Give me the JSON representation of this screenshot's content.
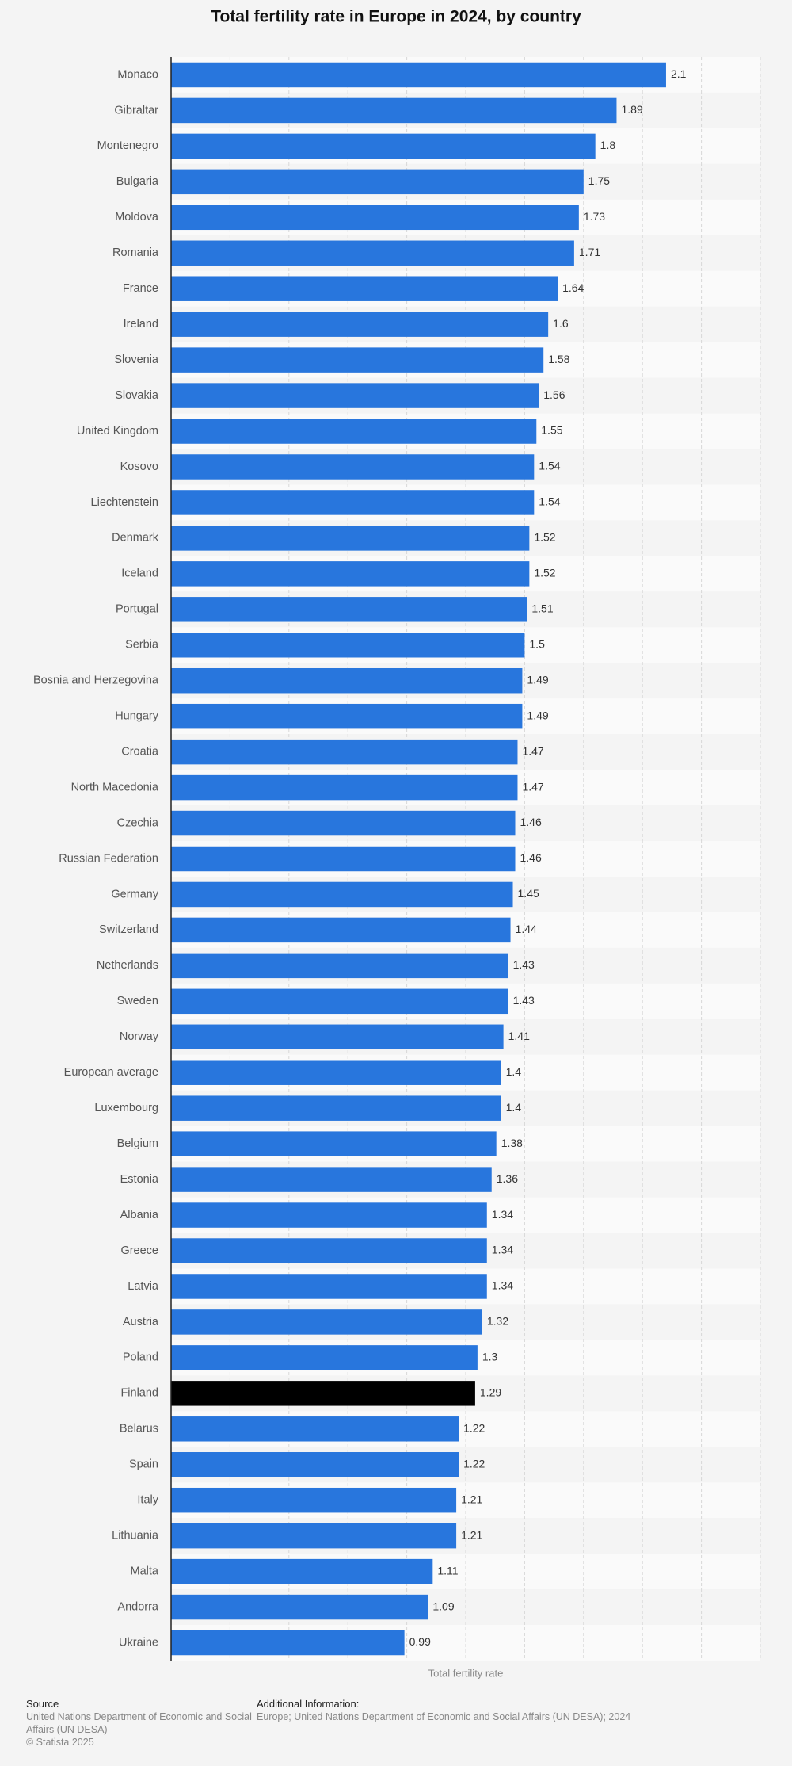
{
  "chart_data": {
    "type": "bar",
    "orientation": "horizontal",
    "title": "Total fertility rate in Europe in 2024, by country",
    "x_label": "Total fertility rate",
    "categories": [
      "Monaco",
      "Gibraltar",
      "Montenegro",
      "Bulgaria",
      "Moldova",
      "Romania",
      "France",
      "Ireland",
      "Slovenia",
      "Slovakia",
      "United Kingdom",
      "Kosovo",
      "Liechtenstein",
      "Denmark",
      "Iceland",
      "Portugal",
      "Serbia",
      "Bosnia and Herzegovina",
      "Hungary",
      "Croatia",
      "North Macedonia",
      "Czechia",
      "Russian Federation",
      "Germany",
      "Switzerland",
      "Netherlands",
      "Sweden",
      "Norway",
      "European average",
      "Luxembourg",
      "Belgium",
      "Estonia",
      "Albania",
      "Greece",
      "Latvia",
      "Austria",
      "Poland",
      "Finland",
      "Belarus",
      "Spain",
      "Italy",
      "Lithuania",
      "Malta",
      "Andorra",
      "Ukraine"
    ],
    "values": [
      2.1,
      1.89,
      1.8,
      1.75,
      1.73,
      1.71,
      1.64,
      1.6,
      1.58,
      1.56,
      1.55,
      1.54,
      1.54,
      1.52,
      1.52,
      1.51,
      1.5,
      1.49,
      1.49,
      1.47,
      1.47,
      1.46,
      1.46,
      1.45,
      1.44,
      1.43,
      1.43,
      1.41,
      1.4,
      1.4,
      1.38,
      1.36,
      1.34,
      1.34,
      1.34,
      1.32,
      1.3,
      1.29,
      1.22,
      1.22,
      1.21,
      1.21,
      1.11,
      1.09,
      0.99
    ],
    "colors": [
      "#2876dd",
      "#2876dd",
      "#2876dd",
      "#2876dd",
      "#2876dd",
      "#2876dd",
      "#2876dd",
      "#2876dd",
      "#2876dd",
      "#2876dd",
      "#2876dd",
      "#2876dd",
      "#2876dd",
      "#2876dd",
      "#2876dd",
      "#2876dd",
      "#2876dd",
      "#2876dd",
      "#2876dd",
      "#2876dd",
      "#2876dd",
      "#2876dd",
      "#2876dd",
      "#2876dd",
      "#2876dd",
      "#2876dd",
      "#2876dd",
      "#2876dd",
      "#2876dd",
      "#2876dd",
      "#2876dd",
      "#2876dd",
      "#2876dd",
      "#2876dd",
      "#2876dd",
      "#2876dd",
      "#2876dd",
      "#000000",
      "#2876dd",
      "#2876dd",
      "#2876dd",
      "#2876dd",
      "#2876dd",
      "#2876dd",
      "#2876dd"
    ],
    "xlim": [
      0,
      2.5
    ],
    "xticks": [
      0,
      0.25,
      0.5,
      0.75,
      1,
      1.25,
      1.5,
      1.75,
      2,
      2.25,
      2.5
    ],
    "grid": true
  },
  "footer": {
    "source_label": "Source",
    "source_text": "United Nations Department of Economic and Social Affairs (UN DESA)",
    "copyright": "© Statista 2025",
    "info_label": "Additional Information:",
    "info_text": "Europe; United Nations Department of Economic and Social Affairs (UN DESA); 2024"
  }
}
